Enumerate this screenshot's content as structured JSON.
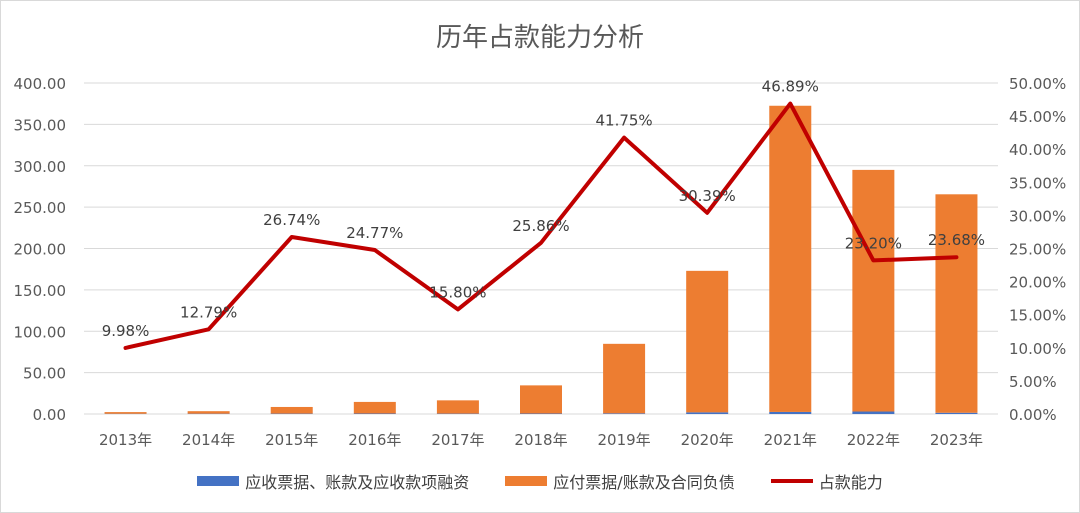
{
  "chart_data": {
    "type": "bar",
    "title": "历年占款能力分析",
    "categories": [
      "2013年",
      "2014年",
      "2015年",
      "2016年",
      "2017年",
      "2018年",
      "2019年",
      "2020年",
      "2021年",
      "2022年",
      "2023年"
    ],
    "ylim": [
      0,
      400
    ],
    "y_ticks": [
      "0.00",
      "50.00",
      "100.00",
      "150.00",
      "200.00",
      "250.00",
      "300.00",
      "350.00",
      "400.00"
    ],
    "y2lim": [
      0,
      0.5
    ],
    "y2_ticks": [
      "0.00%",
      "5.00%",
      "10.00%",
      "15.00%",
      "20.00%",
      "25.00%",
      "30.00%",
      "35.00%",
      "40.00%",
      "45.00%",
      "50.00%"
    ],
    "stacked": true,
    "grid": true,
    "legend_position": "bottom",
    "series": [
      {
        "name": "应收票据、账款及应收款项融资",
        "type": "bar",
        "axis": "left",
        "color": "#4472c4",
        "values": [
          0.3,
          0.4,
          0.5,
          0.6,
          0.5,
          0.6,
          0.8,
          2.0,
          2.5,
          3.0,
          1.5
        ]
      },
      {
        "name": "应付票据/账款及合同负债",
        "type": "bar",
        "axis": "left",
        "color": "#ed7d31",
        "values": [
          2.0,
          3.0,
          8.0,
          14.0,
          16.0,
          34.0,
          84.0,
          171.0,
          370.0,
          292.0,
          264.0
        ]
      },
      {
        "name": "占款能力",
        "type": "line",
        "axis": "right",
        "color": "#c00000",
        "values": [
          0.0998,
          0.1279,
          0.2674,
          0.2477,
          0.158,
          0.2586,
          0.4175,
          0.3039,
          0.4689,
          0.232,
          0.2368
        ],
        "labels": [
          "9.98%",
          "12.79%",
          "26.74%",
          "24.77%",
          "15.80%",
          "25.86%",
          "41.75%",
          "30.39%",
          "46.89%",
          "23.20%",
          "23.68%"
        ]
      }
    ]
  }
}
